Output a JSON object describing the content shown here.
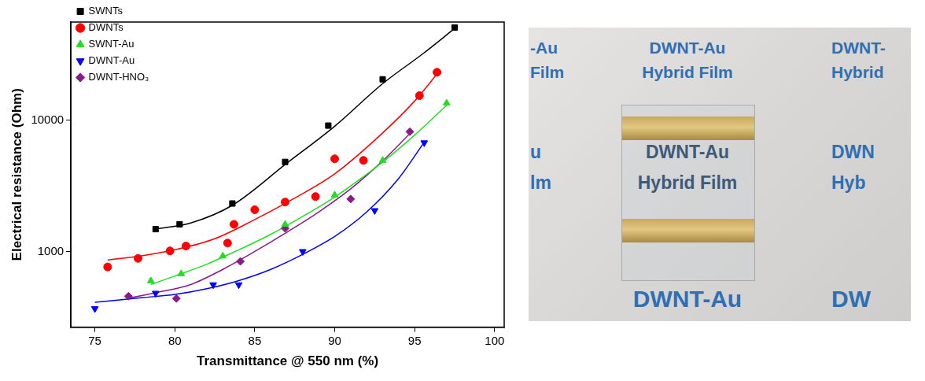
{
  "chart_data": {
    "type": "scatter",
    "x_label": "Transmittance @ 550 nm (%)",
    "y_label": "Electrical resistance (Ohm)",
    "log": "y",
    "grid": false,
    "legend": "upper left",
    "xlim": [
      73.5,
      100.6
    ],
    "xticks": [
      75,
      80,
      85,
      90,
      95,
      100
    ],
    "ylim": [
      265,
      56000
    ],
    "yticks": [
      1000,
      10000
    ],
    "series": [
      {
        "name": "SWNTs",
        "color": "#000000",
        "marker": "square",
        "x": [
          78.8,
          80.3,
          83.6,
          86.9,
          89.6,
          93.0,
          97.5
        ],
        "values": [
          1480,
          1610,
          2320,
          4810,
          9100,
          20500,
          50800
        ],
        "fit": {
          "x": [
            78.8,
            81,
            83.6,
            87,
            90,
            93,
            95.5,
            97.5
          ],
          "values": [
            1480,
            1650,
            2250,
            4700,
            9000,
            19000,
            32000,
            50000
          ]
        }
      },
      {
        "name": "DWNTs",
        "color": "#ff0000",
        "marker": "circle",
        "x": [
          75.8,
          77.7,
          79.7,
          80.7,
          83.3,
          83.7,
          85.0,
          86.9,
          88.8,
          90.0,
          91.8,
          95.3,
          96.4
        ],
        "values": [
          762,
          886,
          1010,
          1100,
          1160,
          1610,
          2080,
          2380,
          2620,
          5080,
          4940,
          15400,
          23200
        ],
        "fit": {
          "x": [
            75.8,
            78,
            80,
            82.5,
            85,
            87.5,
            90,
            93,
            95,
            96.4
          ],
          "values": [
            860,
            930,
            1030,
            1250,
            1750,
            2550,
            3900,
            8000,
            14000,
            22500
          ]
        }
      },
      {
        "name": "SWNT-Au",
        "color": "#22dd22",
        "marker": "triangle-up",
        "x": [
          78.5,
          80.4,
          83.0,
          86.9,
          90.0,
          93.0,
          97.0
        ],
        "values": [
          597,
          676,
          922,
          1610,
          2690,
          4940,
          13500
        ],
        "fit": {
          "x": [
            78.5,
            80,
            82,
            84,
            86,
            88,
            90,
            93,
            95,
            97
          ],
          "values": [
            560,
            650,
            800,
            1030,
            1350,
            1850,
            2600,
            4800,
            7700,
            13000
          ]
        }
      },
      {
        "name": "DWNT-Au",
        "color": "#0000ff",
        "marker": "triangle-down",
        "x": [
          75.0,
          78.8,
          82.4,
          84.0,
          88.0,
          92.5,
          95.6
        ],
        "values": [
          367,
          481,
          558,
          558,
          1000,
          2050,
          6740
        ],
        "fit": {
          "x": [
            75,
            78,
            80,
            82,
            84,
            86,
            88,
            90,
            92,
            94,
            95.6
          ],
          "values": [
            410,
            445,
            470,
            520,
            600,
            730,
            950,
            1300,
            2000,
            3600,
            6800
          ]
        }
      },
      {
        "name": "DWNT-HNO₃",
        "color": "#8b1a8b",
        "marker": "diamond",
        "x": [
          77.1,
          80.1,
          84.1,
          86.9,
          91.0,
          94.7
        ],
        "values": [
          456,
          438,
          840,
          1500,
          2510,
          8170
        ],
        "fit": {
          "x": [
            77.1,
            79,
            81,
            83,
            85,
            87,
            89,
            91,
            93,
            94.7
          ],
          "values": [
            440,
            490,
            560,
            730,
            1000,
            1400,
            2000,
            3000,
            4900,
            7900
          ]
        }
      }
    ]
  },
  "photo": {
    "rows": [
      [
        "-Au",
        "DWNT-Au",
        "DWNT-"
      ],
      [
        "Film",
        "Hybrid Film",
        "Hybrid"
      ],
      [
        "u",
        "DWNT-Au",
        "DWN"
      ],
      [
        "lm",
        "Hybrid Film",
        "Hyb"
      ],
      [
        "DWNT-Au",
        "DW"
      ]
    ]
  }
}
